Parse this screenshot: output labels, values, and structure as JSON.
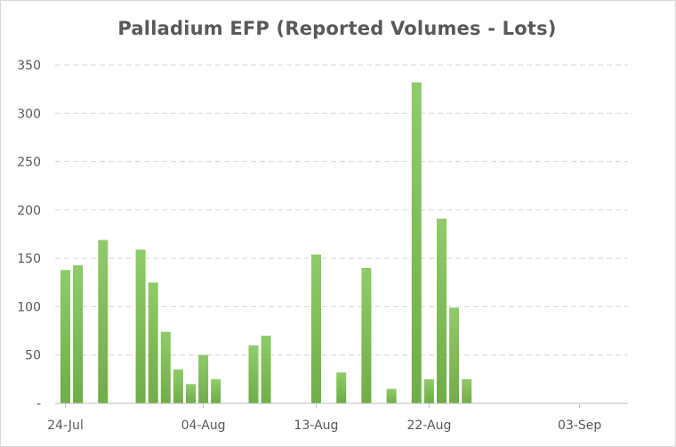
{
  "chart_data": {
    "type": "bar",
    "title": "Palladium EFP (Reported Volumes - Lots)",
    "xlabel": "",
    "ylabel": "",
    "ylim": [
      0,
      350
    ],
    "yticks": [
      {
        "value": 0,
        "label": "-"
      },
      {
        "value": 50,
        "label": "50"
      },
      {
        "value": 100,
        "label": "100"
      },
      {
        "value": 150,
        "label": "150"
      },
      {
        "value": 200,
        "label": "200"
      },
      {
        "value": 250,
        "label": "250"
      },
      {
        "value": 300,
        "label": "300"
      },
      {
        "value": 350,
        "label": "350"
      }
    ],
    "x_range": [
      "2021-07-24",
      "2021-09-06"
    ],
    "xticks": [
      {
        "date": "2021-07-24",
        "label": "24-Jul"
      },
      {
        "date": "2021-08-04",
        "label": "04-Aug"
      },
      {
        "date": "2021-08-13",
        "label": "13-Aug"
      },
      {
        "date": "2021-08-22",
        "label": "22-Aug"
      },
      {
        "date": "2021-09-03",
        "label": "03-Sep"
      }
    ],
    "grid": true,
    "bar_color": "#70ad47",
    "points": [
      {
        "date": "2021-07-24",
        "value": 138
      },
      {
        "date": "2021-07-25",
        "value": 143
      },
      {
        "date": "2021-07-27",
        "value": 169
      },
      {
        "date": "2021-07-30",
        "value": 159
      },
      {
        "date": "2021-07-31",
        "value": 125
      },
      {
        "date": "2021-08-01",
        "value": 74
      },
      {
        "date": "2021-08-02",
        "value": 35
      },
      {
        "date": "2021-08-03",
        "value": 20
      },
      {
        "date": "2021-08-04",
        "value": 50
      },
      {
        "date": "2021-08-05",
        "value": 25
      },
      {
        "date": "2021-08-08",
        "value": 60
      },
      {
        "date": "2021-08-09",
        "value": 70
      },
      {
        "date": "2021-08-13",
        "value": 154
      },
      {
        "date": "2021-08-15",
        "value": 32
      },
      {
        "date": "2021-08-17",
        "value": 140
      },
      {
        "date": "2021-08-19",
        "value": 15
      },
      {
        "date": "2021-08-21",
        "value": 332
      },
      {
        "date": "2021-08-22",
        "value": 25
      },
      {
        "date": "2021-08-23",
        "value": 191
      },
      {
        "date": "2021-08-24",
        "value": 99
      },
      {
        "date": "2021-08-25",
        "value": 25
      }
    ]
  }
}
